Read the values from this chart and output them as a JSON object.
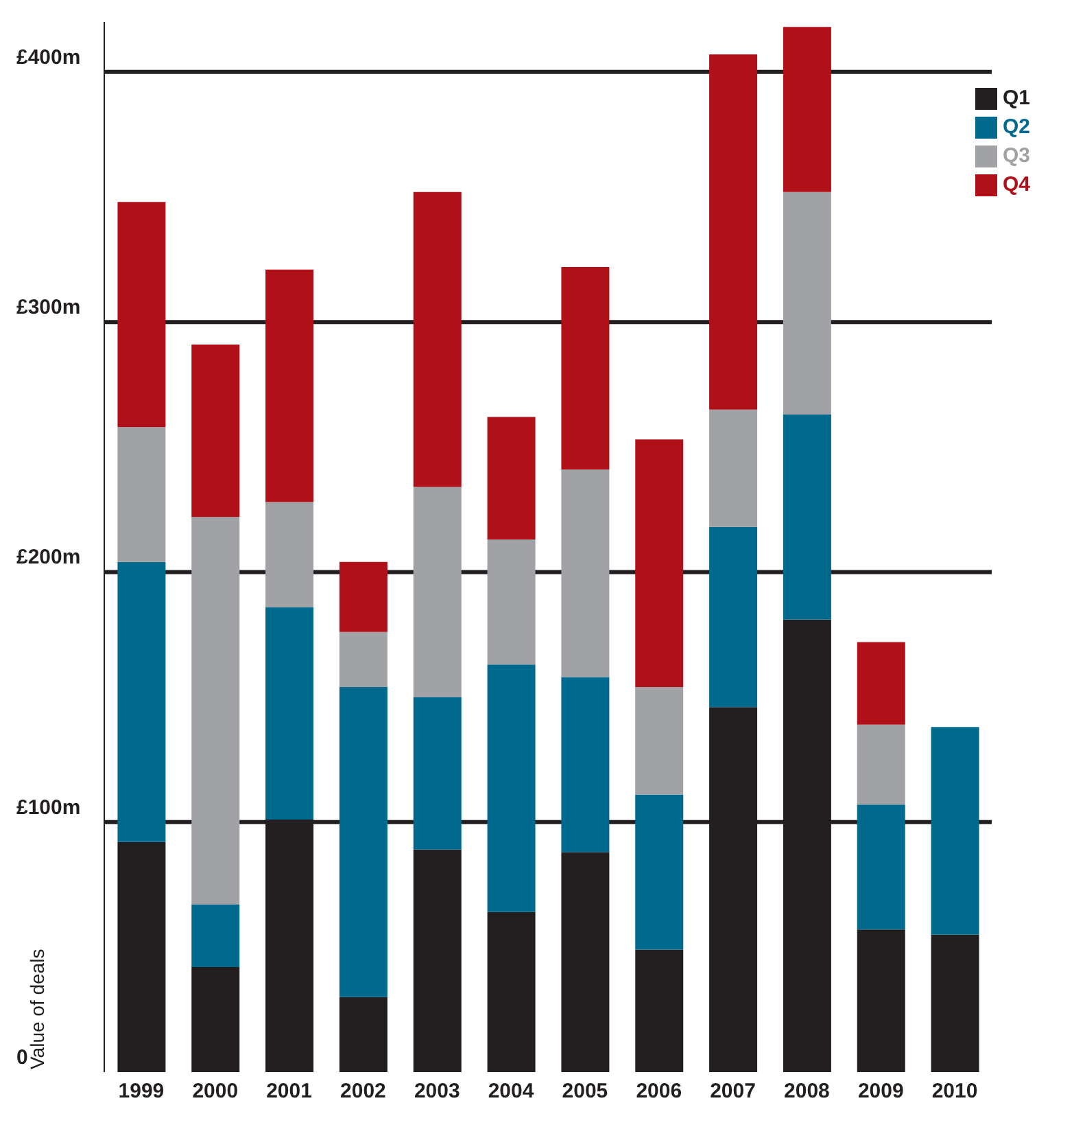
{
  "chart_data": {
    "type": "bar",
    "stacked": true,
    "ylabel": "Value of deals",
    "categories": [
      "1999",
      "2000",
      "2001",
      "2002",
      "2003",
      "2004",
      "2005",
      "2006",
      "2007",
      "2008",
      "2009",
      "2010"
    ],
    "series": [
      {
        "name": "Q1",
        "color": "#231f20",
        "values": [
          92,
          42,
          101,
          30,
          89,
          64,
          88,
          49,
          146,
          181,
          57,
          55
        ]
      },
      {
        "name": "Q2",
        "color": "#006a8e",
        "values": [
          112,
          25,
          85,
          124,
          61,
          99,
          70,
          62,
          72,
          82,
          50,
          83
        ]
      },
      {
        "name": "Q3",
        "color": "#a0a2a5",
        "values": [
          54,
          155,
          42,
          22,
          84,
          50,
          83,
          43,
          47,
          89,
          32,
          null
        ]
      },
      {
        "name": "Q4",
        "color": "#b01018",
        "values": [
          90,
          69,
          93,
          28,
          118,
          49,
          81,
          99,
          142,
          66,
          33,
          null
        ]
      }
    ],
    "ylim": [
      0,
      420
    ],
    "yticks": [
      {
        "value": 0,
        "label": "0"
      },
      {
        "value": 100,
        "label": "£100m"
      },
      {
        "value": 200,
        "label": "£200m"
      },
      {
        "value": 300,
        "label": "£300m"
      },
      {
        "value": 400,
        "label": "£400m"
      }
    ],
    "grid": "y",
    "legend": "top right"
  }
}
